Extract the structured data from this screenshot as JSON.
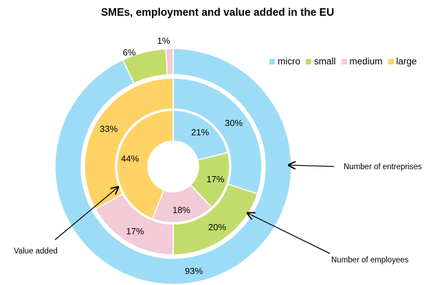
{
  "chart_data": {
    "type": "pie",
    "subtype": "multi-level donut",
    "title": "SMEs, employment  and value added in the EU",
    "categories": [
      "micro",
      "small",
      "medium",
      "large"
    ],
    "colors": {
      "micro": "#9ddcf7",
      "small": "#c2dc6b",
      "medium": "#f2cbd6",
      "large": "#fed264"
    },
    "legend_position": "top-right",
    "rings": [
      {
        "name": "Number of entreprises",
        "level": "outer",
        "values": [
          93,
          6,
          1,
          0
        ],
        "labels": [
          "93%",
          "6%",
          "1%",
          ""
        ]
      },
      {
        "name": "Number of employees",
        "level": "middle",
        "values": [
          30,
          20,
          17,
          33
        ],
        "labels": [
          "30%",
          "20%",
          "17%",
          "33%"
        ]
      },
      {
        "name": "Value added",
        "level": "inner",
        "values": [
          21,
          17,
          18,
          44
        ],
        "labels": [
          "21%",
          "17%",
          "18%",
          "44%"
        ]
      }
    ]
  }
}
